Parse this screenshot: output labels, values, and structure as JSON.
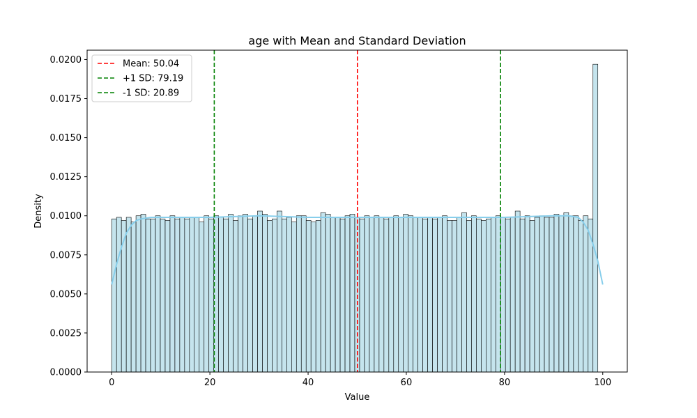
{
  "chart_data": {
    "type": "bar",
    "title": "age with Mean and Standard Deviation",
    "xlabel": "Value",
    "ylabel": "Density",
    "xlim": [
      -5,
      105
    ],
    "ylim": [
      0,
      0.0206
    ],
    "xticks": [
      0,
      20,
      40,
      60,
      80,
      100
    ],
    "yticks": [
      0.0,
      0.0025,
      0.005,
      0.0075,
      0.01,
      0.0125,
      0.015,
      0.0175,
      0.02
    ],
    "ytick_labels": [
      "0.0000",
      "0.0025",
      "0.0050",
      "0.0075",
      "0.0100",
      "0.0125",
      "0.0150",
      "0.0175",
      "0.0200"
    ],
    "grid": false,
    "legend_position": "top-left",
    "bin_start": 0,
    "bin_width": 0.99,
    "bin_values": [
      0.0098,
      0.0099,
      0.0097,
      0.0099,
      0.0096,
      0.01,
      0.0101,
      0.0098,
      0.0098,
      0.01,
      0.0098,
      0.0097,
      0.01,
      0.0098,
      0.0099,
      0.0098,
      0.0099,
      0.0099,
      0.0096,
      0.01,
      0.0098,
      0.01,
      0.0099,
      0.0098,
      0.0101,
      0.0097,
      0.01,
      0.0101,
      0.0098,
      0.01,
      0.0103,
      0.0101,
      0.0097,
      0.0098,
      0.0103,
      0.0098,
      0.0099,
      0.0096,
      0.01,
      0.01,
      0.0097,
      0.0096,
      0.0097,
      0.0102,
      0.0101,
      0.0099,
      0.0099,
      0.0098,
      0.01,
      0.0101,
      0.0099,
      0.0098,
      0.01,
      0.0099,
      0.01,
      0.0099,
      0.0098,
      0.0099,
      0.01,
      0.0099,
      0.0101,
      0.01,
      0.0099,
      0.0099,
      0.0098,
      0.0099,
      0.0098,
      0.0099,
      0.01,
      0.0097,
      0.0097,
      0.0099,
      0.0102,
      0.0097,
      0.01,
      0.0098,
      0.0097,
      0.0098,
      0.0099,
      0.01,
      0.0099,
      0.0098,
      0.0099,
      0.0103,
      0.0098,
      0.01,
      0.0097,
      0.0099,
      0.01,
      0.0099,
      0.0099,
      0.0101,
      0.01,
      0.0102,
      0.01,
      0.01,
      0.0097,
      0.01,
      0.0098,
      0.0197
    ],
    "kde": {
      "x": [
        0,
        1,
        2,
        3,
        4,
        5,
        6,
        8,
        10,
        20,
        30,
        40,
        50,
        60,
        70,
        80,
        90,
        93,
        95,
        96,
        97,
        98,
        99,
        100
      ],
      "y": [
        0.0056,
        0.0069,
        0.008,
        0.0089,
        0.0094,
        0.0097,
        0.0098,
        0.0099,
        0.0099,
        0.0099,
        0.01,
        0.0099,
        0.0099,
        0.0099,
        0.0099,
        0.0099,
        0.01,
        0.01,
        0.0099,
        0.0096,
        0.0091,
        0.0082,
        0.0071,
        0.0056
      ]
    },
    "reference_lines": [
      {
        "label": "Mean: 50.04",
        "x": 50.04,
        "color": "#ff0000"
      },
      {
        "label": "+1 SD: 79.19",
        "x": 79.19,
        "color": "#008000"
      },
      {
        "label": "-1 SD: 20.89",
        "x": 20.89,
        "color": "#008000"
      }
    ],
    "colors": {
      "bar_fill": "#add8e6",
      "bar_edge": "#000000",
      "kde_line": "#87ceeb"
    }
  }
}
